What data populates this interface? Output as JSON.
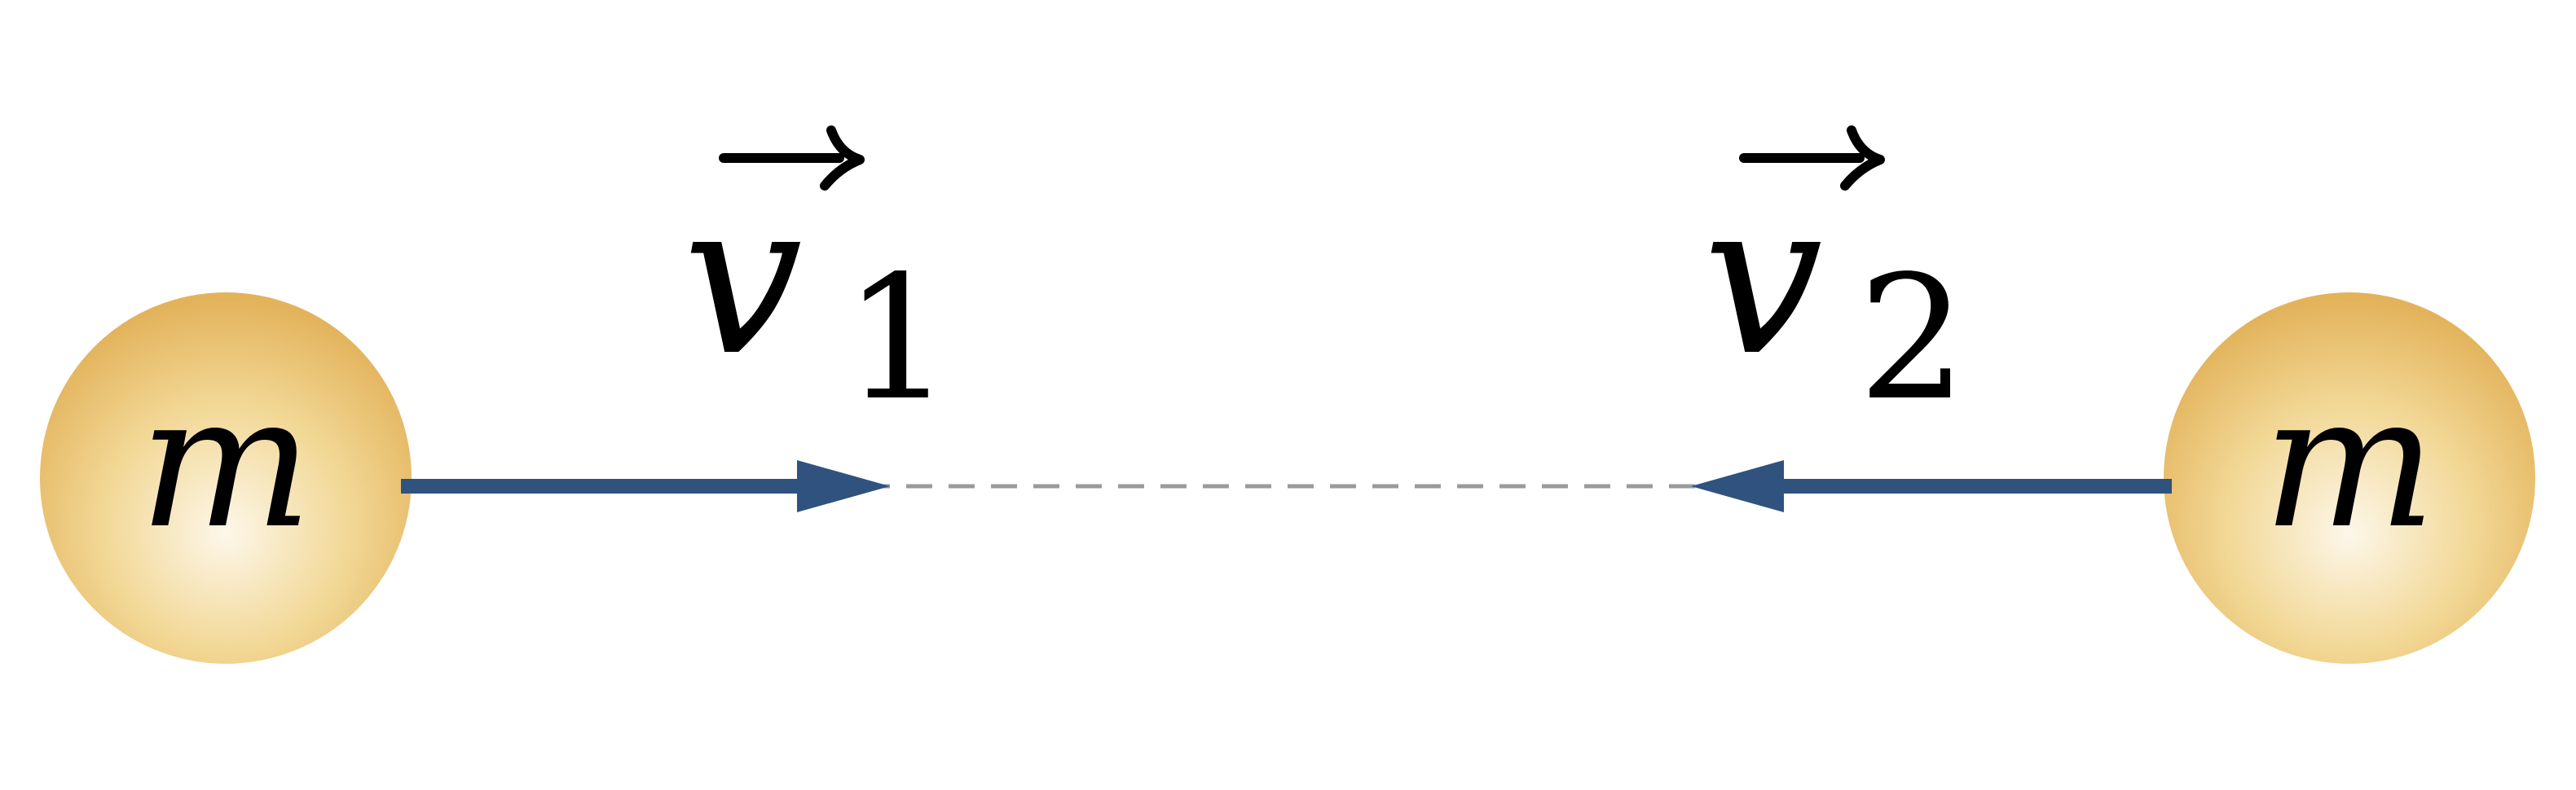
{
  "diagram": {
    "left_mass": {
      "label": "m"
    },
    "right_mass": {
      "label": "m"
    },
    "velocity_1": {
      "symbol": "v",
      "subscript": "1"
    },
    "velocity_2": {
      "symbol": "v",
      "subscript": "2"
    },
    "colors": {
      "mass_center": "#fdf7ea",
      "mass_mid": "#f2d896",
      "mass_edge": "#e3b35c",
      "arrow": "#2f527e",
      "path": "#9a9a9a",
      "text": "#000000"
    }
  }
}
